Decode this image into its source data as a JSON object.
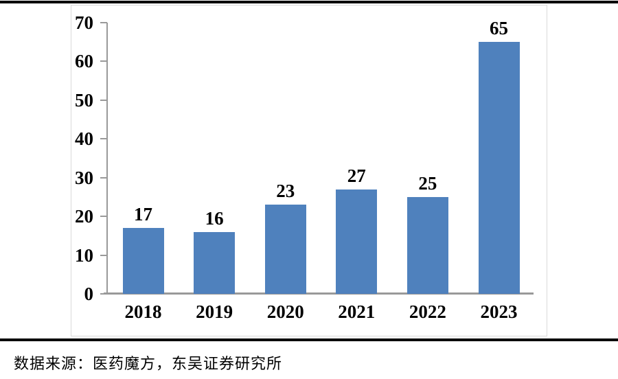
{
  "source": {
    "text": "数据来源：医药魔方，东吴证券研究所"
  },
  "chart_data": {
    "type": "bar",
    "categories": [
      "2018",
      "2019",
      "2020",
      "2021",
      "2022",
      "2023"
    ],
    "values": [
      17,
      16,
      23,
      27,
      25,
      65
    ],
    "bar_labels": [
      "17",
      "16",
      "23",
      "27",
      "25",
      "65"
    ],
    "title": "",
    "xlabel": "",
    "ylabel": "",
    "ylim": [
      0,
      70
    ],
    "yticks": [
      0,
      10,
      20,
      30,
      40,
      50,
      60,
      70
    ],
    "grid": false,
    "legend": "none",
    "bar_color": "#4F81BD",
    "axis_color": "#999999"
  }
}
